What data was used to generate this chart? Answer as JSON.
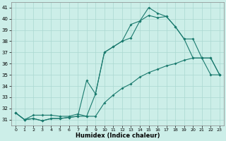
{
  "xlabel": "Humidex (Indice chaleur)",
  "ylabel": "",
  "background_color": "#cceee8",
  "grid_color": "#aad8d0",
  "line_color": "#1a7a6e",
  "xlim": [
    -0.5,
    23.5
  ],
  "ylim": [
    30.5,
    41.5
  ],
  "xticks": [
    0,
    1,
    2,
    3,
    4,
    5,
    6,
    7,
    8,
    9,
    10,
    11,
    12,
    13,
    14,
    15,
    16,
    17,
    18,
    19,
    20,
    21,
    22,
    23
  ],
  "yticks": [
    31,
    32,
    33,
    34,
    35,
    36,
    37,
    38,
    39,
    40,
    41
  ],
  "line1_x": [
    0,
    1,
    2,
    3,
    4,
    5,
    6,
    7,
    8,
    9,
    10,
    11,
    12,
    13,
    14,
    15,
    16,
    17,
    18,
    19,
    20,
    21,
    22,
    23
  ],
  "line1_y": [
    31.6,
    31.0,
    31.4,
    31.4,
    31.4,
    31.3,
    31.3,
    31.5,
    31.3,
    31.3,
    32.5,
    33.2,
    33.8,
    34.2,
    34.8,
    35.2,
    35.5,
    35.8,
    36.0,
    36.3,
    36.5,
    36.5,
    36.5,
    35.0
  ],
  "line2_x": [
    0,
    1,
    2,
    3,
    4,
    5,
    6,
    7,
    8,
    9,
    10,
    11,
    12,
    13,
    14,
    15,
    16,
    17,
    18,
    19,
    20,
    21,
    22,
    23
  ],
  "line2_y": [
    31.6,
    31.0,
    31.1,
    30.9,
    31.1,
    31.1,
    31.2,
    31.3,
    34.5,
    33.3,
    37.0,
    37.5,
    38.0,
    38.3,
    39.8,
    40.3,
    40.1,
    40.2,
    39.3,
    38.2,
    38.2,
    36.5,
    35.0,
    35.0
  ],
  "line3_x": [
    0,
    1,
    2,
    3,
    4,
    5,
    6,
    7,
    8,
    9,
    10,
    11,
    12,
    13,
    14,
    15,
    16,
    17,
    18,
    19,
    20,
    21,
    22,
    23
  ],
  "line3_y": [
    31.6,
    31.0,
    31.1,
    30.9,
    31.1,
    31.1,
    31.2,
    31.3,
    31.3,
    33.3,
    37.0,
    37.5,
    38.0,
    39.5,
    39.8,
    41.0,
    40.5,
    40.2,
    39.3,
    38.2,
    36.5,
    36.5,
    36.5,
    35.0
  ]
}
